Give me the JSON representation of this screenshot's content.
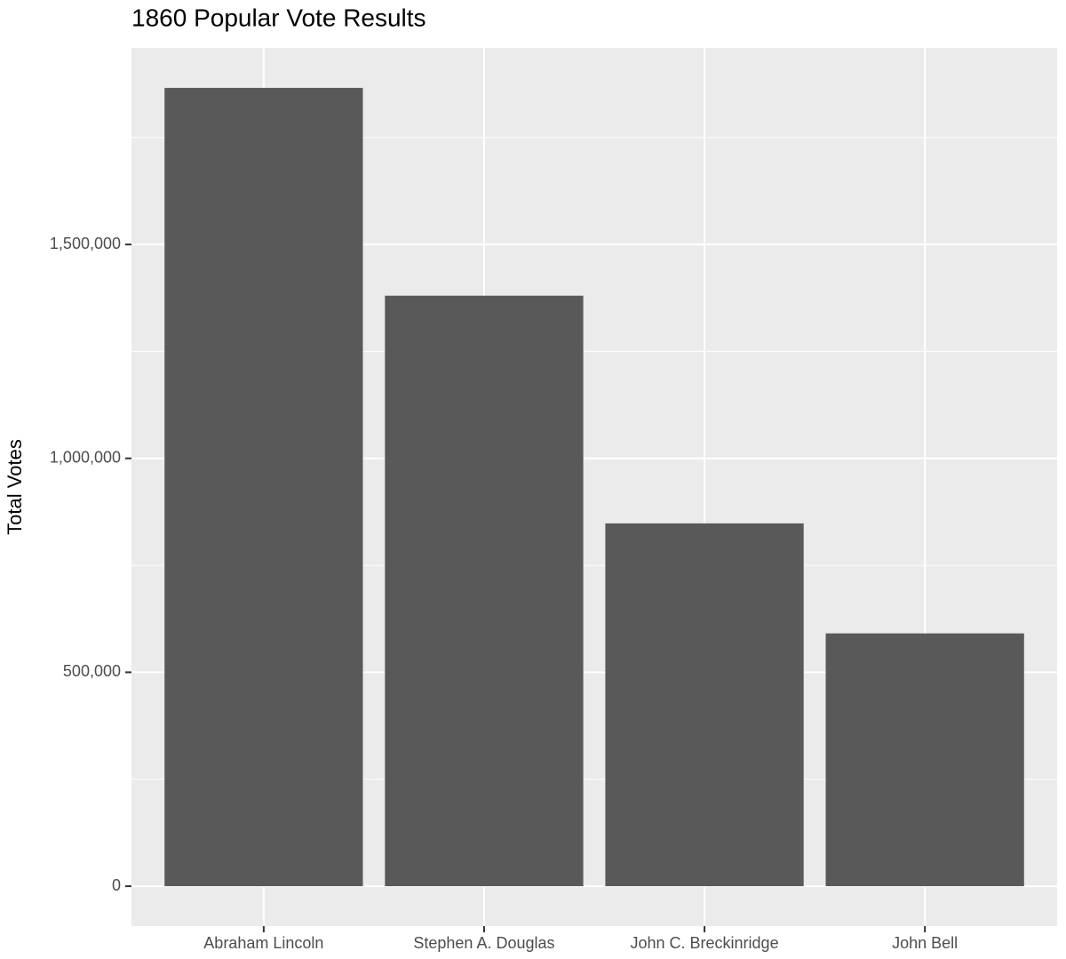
{
  "chart_data": {
    "type": "bar",
    "title": "1860 Popular Vote Results",
    "y_label": "Total Votes",
    "categories": [
      "Abraham Lincoln",
      "Stephen A. Douglas",
      "John C. Breckinridge",
      "John Bell"
    ],
    "values": [
      1865908,
      1380202,
      848019,
      590901
    ],
    "color": "#595959",
    "ylim": [
      -93295,
      1959203
    ],
    "yticks": [
      0,
      {
        "value": 500000,
        "label": "500,000"
      },
      {
        "value": 1000000,
        "label": "1,000,000"
      },
      {
        "value": 1500000,
        "label": "1,500,000"
      }
    ],
    "minor_yticks": [
      250000,
      750000,
      1250000,
      1750000
    ],
    "grid": true
  }
}
